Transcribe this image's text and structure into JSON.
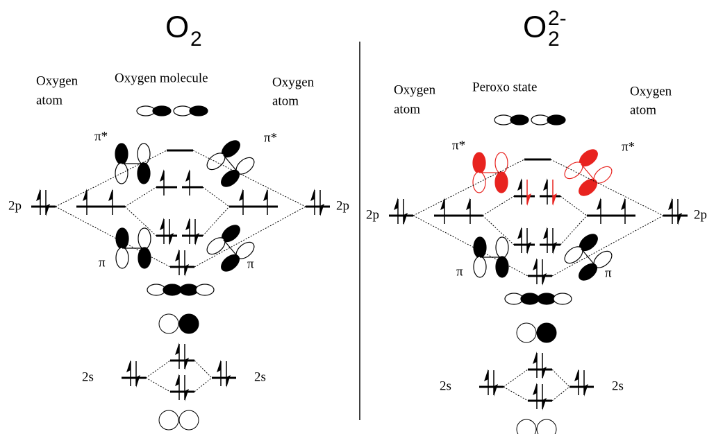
{
  "panels": [
    {
      "title": {
        "main": "O",
        "sub": "2"
      },
      "left_atom": [
        "Oxygen",
        "atom"
      ],
      "center": "Oxygen molecule",
      "right_atom": [
        "Oxygen",
        "atom"
      ],
      "pi_star": [
        "π*",
        "π*"
      ],
      "p_label": [
        "2p",
        "2p"
      ],
      "pi": [
        "π",
        "π"
      ],
      "s_label": [
        "2s",
        "2s"
      ]
    },
    {
      "title": {
        "main": "O",
        "sup": "2-",
        "sub": "2"
      },
      "left_atom": [
        "Oxygen",
        "atom"
      ],
      "center": "Peroxo state",
      "right_atom": [
        "Oxygen",
        "atom"
      ],
      "pi_star": [
        "π*",
        "π*"
      ],
      "p_label": [
        "2p",
        "2p"
      ],
      "pi": [
        "π",
        "π"
      ],
      "s_label": [
        "2s",
        "2s"
      ]
    }
  ]
}
